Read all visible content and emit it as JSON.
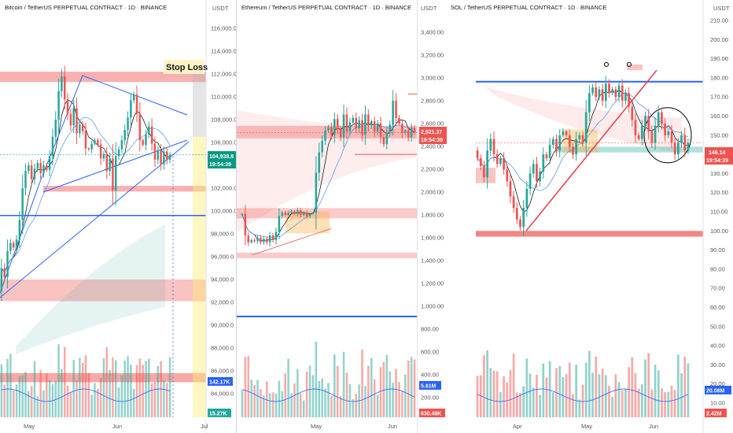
{
  "chart_data": [
    {
      "type": "candlestick",
      "title": "Bitcoin / TetherUS PERPETUAL CONTRACT · 1D · BINANCE",
      "currency": "USDT",
      "yticks": [
        "116,000.0",
        "114,000.0",
        "112,000.0",
        "110,000.0",
        "108,000.0",
        "106,000.0",
        "104,000.0",
        "102,000.0",
        "100,000.0",
        "98,000.0",
        "96,000.0",
        "94,000.0",
        "92,000.0",
        "90,000.0",
        "88,000.0",
        "86,000.0",
        "84,000.0"
      ],
      "xticks": [
        "May",
        "Jun",
        "Jul"
      ],
      "last_price": "104,938.8",
      "countdown": "19:54:39",
      "volume_ma_label": "142.17K",
      "volume_label": "15.27K",
      "annotation": "Stop Loss",
      "ylim": [
        83000,
        117500
      ],
      "price_path": [
        95000,
        94200,
        96500,
        97200,
        96800,
        97500,
        99200,
        102000,
        103500,
        104000,
        102800,
        103700,
        104200,
        103300,
        104000,
        103600,
        104800,
        106500,
        108000,
        110500,
        111800,
        109800,
        108500,
        107500,
        109000,
        106800,
        107600,
        107000,
        105500,
        105400,
        105900,
        106200,
        105800,
        104600,
        105000,
        103500,
        104600,
        101800,
        104800,
        105400,
        106200,
        107100,
        108200,
        109700,
        110200,
        108500,
        106200,
        105800,
        106700,
        107400,
        105900,
        104500,
        105300,
        104100,
        105200,
        104500,
        104938
      ],
      "start_price": 93000,
      "colors": {
        "up": "#26a69a",
        "down": "#ef5350",
        "accent": "#2962ff"
      }
    },
    {
      "type": "candlestick",
      "title": "Ethereum / TetherUS PERPETUAL CONTRACT · 1D · BINANCE",
      "currency": "USDT",
      "yticks": [
        "3,400.00",
        "3,200.00",
        "3,000.00",
        "2,800.00",
        "2,600.00",
        "2,400.00",
        "2,200.00",
        "2,000.00",
        "1,800.00",
        "1,600.00",
        "1,400.00",
        "1,200.00",
        "1,000.00",
        "800.00",
        "600.00",
        "400.00",
        "200.00"
      ],
      "xticks": [
        "May",
        "Jun"
      ],
      "last_price": "2,521.37",
      "countdown": "19:54:39",
      "volume_ma_label": "5.61M",
      "volume_label": "630.49K",
      "ylim": [
        150,
        3530
      ],
      "price_path": [
        1810,
        1620,
        1560,
        1580,
        1570,
        1600,
        1560,
        1590,
        1560,
        1620,
        1580,
        1650,
        1790,
        1820,
        1800,
        1820,
        1830,
        1810,
        1840,
        1800,
        1820,
        1790,
        1810,
        1820,
        2170,
        2350,
        2450,
        2540,
        2570,
        2500,
        2640,
        2550,
        2480,
        2680,
        2530,
        2610,
        2650,
        2560,
        2630,
        2500,
        2680,
        2580,
        2620,
        2530,
        2600,
        2480,
        2420,
        2520,
        2590,
        2800,
        2650,
        2600,
        2520,
        2540,
        2480,
        2560,
        2521
      ],
      "start_price": 1800,
      "colors": {
        "up": "#26a69a",
        "down": "#ef5350",
        "accent": "#2962ff"
      }
    },
    {
      "type": "candlestick",
      "title": "SOL / TetherUS PERPETUAL CONTRACT · 1D · BINANCE",
      "currency": "USDT",
      "yticks": [
        "210.00",
        "200.00",
        "190.00",
        "180.00",
        "170.00",
        "160.00",
        "150.00",
        "140.00",
        "130.00",
        "120.00",
        "110.00",
        "100.00",
        "90.00",
        "80.00",
        "70.00",
        "60.00",
        "50.00",
        "40.00",
        "30.00",
        "20.00",
        "10.00"
      ],
      "xticks": [
        "Apr",
        "May",
        "Jun"
      ],
      "last_price": "146.14",
      "countdown": "19:54:39",
      "volume_ma_label": "20.08M",
      "volume_label": "2.42M",
      "ylim": [
        2,
        215
      ],
      "price_path": [
        138,
        134,
        128,
        142,
        148,
        140,
        135,
        138,
        132,
        126,
        118,
        112,
        106,
        102,
        112,
        122,
        130,
        135,
        126,
        131,
        140,
        138,
        145,
        148,
        142,
        150,
        152,
        150,
        144,
        140,
        148,
        150,
        146,
        162,
        172,
        175,
        170,
        174,
        168,
        177,
        172,
        174,
        170,
        176,
        168,
        172,
        165,
        158,
        150,
        148,
        155,
        160,
        152,
        146,
        155,
        162,
        156,
        150,
        152,
        146,
        140,
        146,
        150,
        142,
        146
      ],
      "start_price": 142,
      "colors": {
        "up": "#26a69a",
        "down": "#ef5350",
        "accent": "#2962ff"
      }
    }
  ]
}
